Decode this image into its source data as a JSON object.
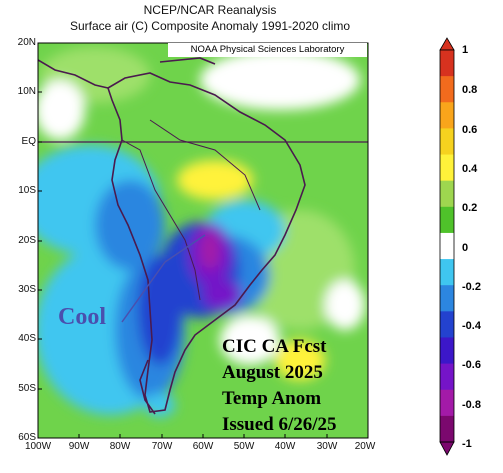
{
  "title": {
    "line1": "NCEP/NCAR Reanalysis",
    "line2": "Surface air (C) Composite Anomaly 1991-2020 climo"
  },
  "credit": "NOAA Physical Sciences Laboratory",
  "lat_labels": [
    "20N",
    "10N",
    "EQ",
    "10S",
    "20S",
    "30S",
    "40S",
    "50S",
    "60S"
  ],
  "lon_labels": [
    "100W",
    "90W",
    "80W",
    "70W",
    "60W",
    "50W",
    "40W",
    "30W",
    "20W"
  ],
  "annotation": {
    "cool": "Cool",
    "forecast": [
      "CIC CA Fcst",
      "August 2025",
      "Temp Anom",
      "Issued 6/26/25"
    ]
  },
  "colorbar": {
    "labels": [
      "1",
      "0.8",
      "0.6",
      "0.4",
      "0.2",
      "0",
      "-0.2",
      "-0.4",
      "-0.6",
      "-0.8",
      "-1"
    ],
    "colors": [
      "#d7321f",
      "#f26b1d",
      "#f9a51b",
      "#f6d21f",
      "#fff23a",
      "#9ed64f",
      "#4fc22a",
      "#ffffff",
      "#3fc6f0",
      "#2c86e0",
      "#2342cf",
      "#3c17c9",
      "#7514c8",
      "#a31aa8",
      "#7b086e"
    ]
  },
  "map": {
    "region": "South America",
    "lat_range": [
      -60,
      20
    ],
    "lon_range": [
      -100,
      -20
    ],
    "background_color": "#6fd34b"
  }
}
